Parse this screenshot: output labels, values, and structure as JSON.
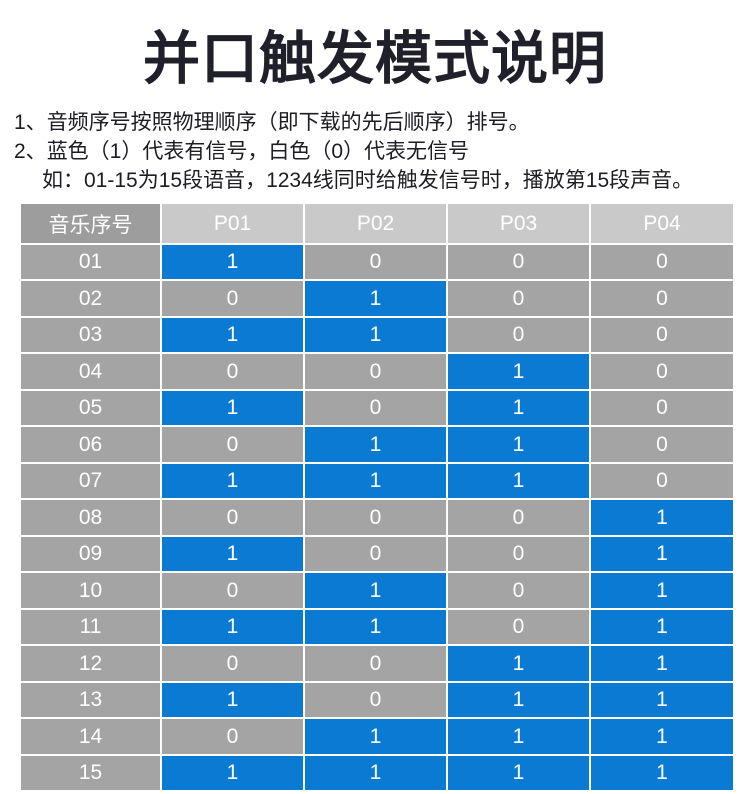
{
  "title": "并口触发模式说明",
  "notes": [
    {
      "num": "1、",
      "text": "音频序号按照物理顺序（即下载的先后顺序）排号。"
    },
    {
      "num": "2、",
      "text": "蓝色（1）代表有信号，白色（0）代表无信号",
      "sub": "如：01-15为15段语音，1234线同时给触发信号时，播放第15段声音。"
    }
  ],
  "table": {
    "headers": [
      "音乐序号",
      "P01",
      "P02",
      "P03",
      "P04"
    ],
    "rows": [
      {
        "label": "01",
        "values": [
          1,
          0,
          0,
          0
        ]
      },
      {
        "label": "02",
        "values": [
          0,
          1,
          0,
          0
        ]
      },
      {
        "label": "03",
        "values": [
          1,
          1,
          0,
          0
        ]
      },
      {
        "label": "04",
        "values": [
          0,
          0,
          1,
          0
        ]
      },
      {
        "label": "05",
        "values": [
          1,
          0,
          1,
          0
        ]
      },
      {
        "label": "06",
        "values": [
          0,
          1,
          1,
          0
        ]
      },
      {
        "label": "07",
        "values": [
          1,
          1,
          1,
          0
        ]
      },
      {
        "label": "08",
        "values": [
          0,
          0,
          0,
          1
        ]
      },
      {
        "label": "09",
        "values": [
          1,
          0,
          0,
          1
        ]
      },
      {
        "label": "10",
        "values": [
          0,
          1,
          0,
          1
        ]
      },
      {
        "label": "11",
        "values": [
          1,
          1,
          0,
          1
        ]
      },
      {
        "label": "12",
        "values": [
          0,
          0,
          1,
          1
        ]
      },
      {
        "label": "13",
        "values": [
          1,
          0,
          1,
          1
        ]
      },
      {
        "label": "14",
        "values": [
          0,
          1,
          1,
          1
        ]
      },
      {
        "label": "15",
        "values": [
          1,
          1,
          1,
          1
        ]
      }
    ]
  },
  "colors": {
    "signal_blue": "#0a7ad2",
    "cell_gray": "#a4a4a4",
    "row_header_gray": "#9d9d9d",
    "col_header_gray": "#c9c9c9",
    "title_color": "#20202a",
    "note_color": "#1c1c22",
    "grid_white": "#ffffff"
  }
}
